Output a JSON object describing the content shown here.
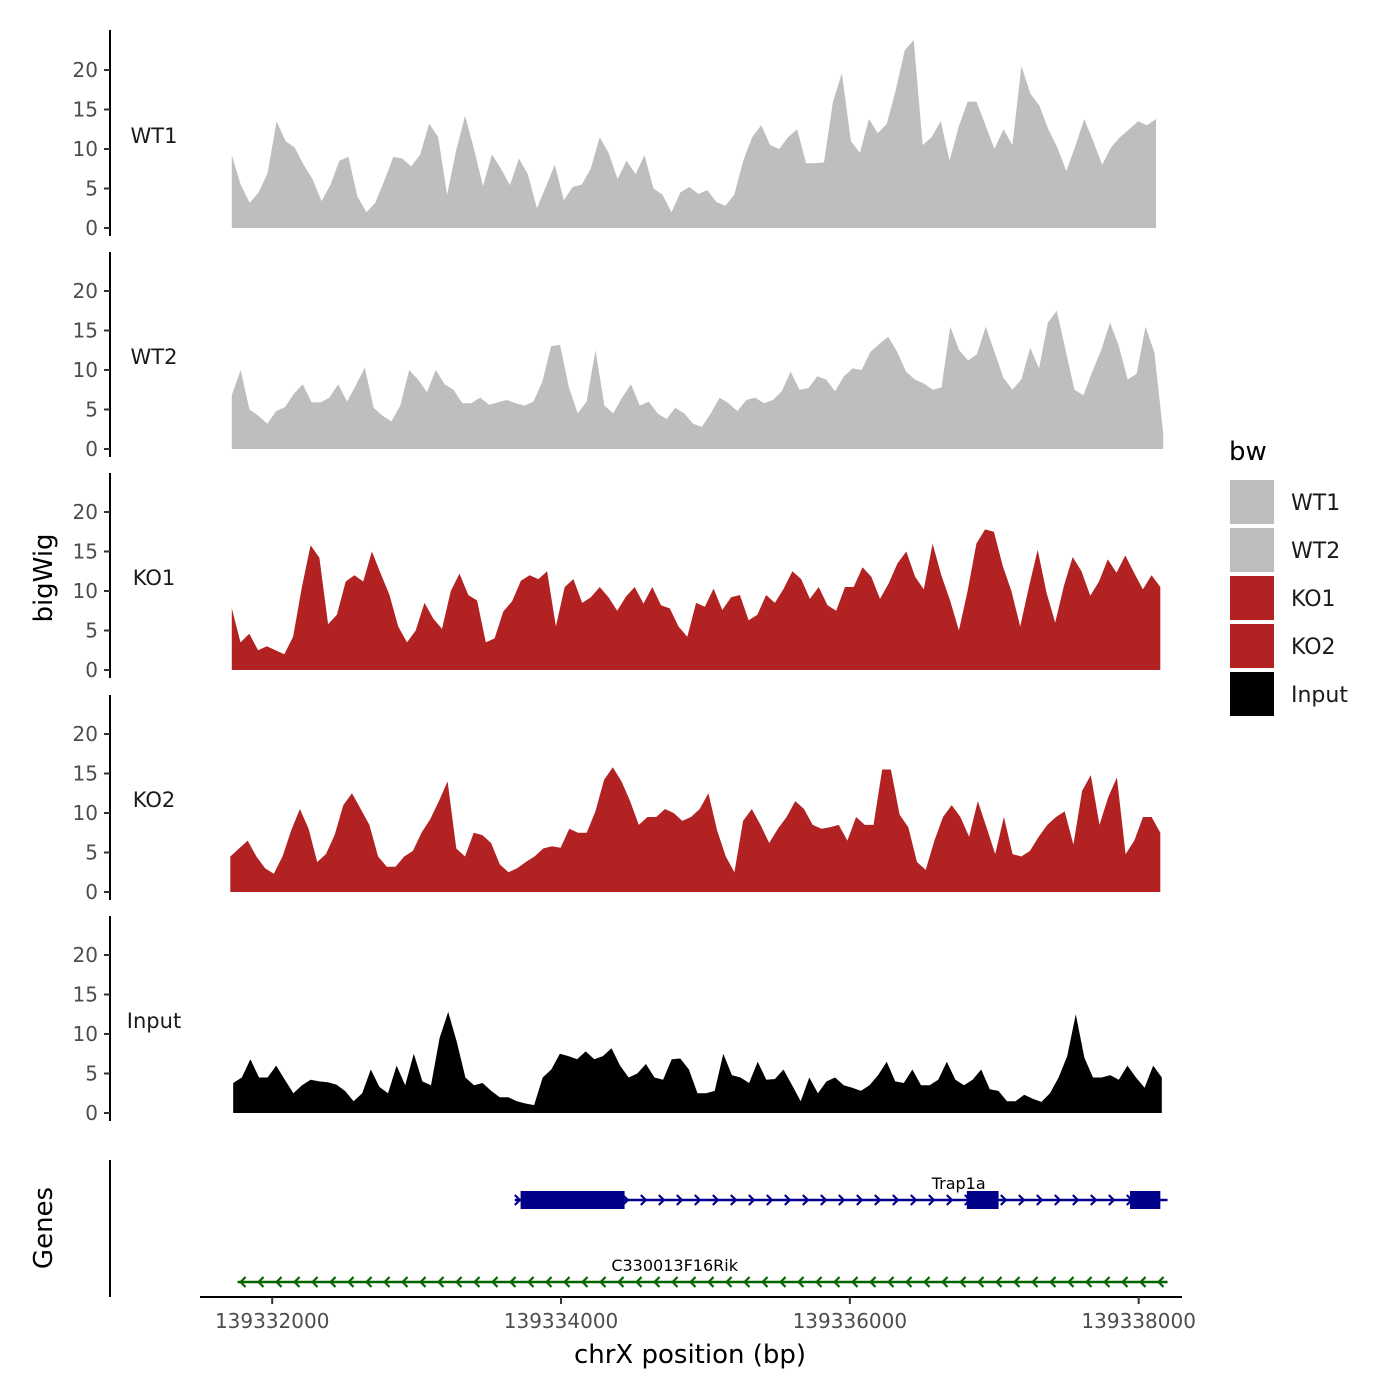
{
  "chart_data": {
    "type": "area",
    "title": "",
    "xlabel": "chrX position (bp)",
    "ylabel": "bigWig",
    "genes_axis_label": "Genes",
    "xlim": [
      139331500,
      139338300
    ],
    "ylim": [
      0,
      25
    ],
    "x_ticks": [
      139332000,
      139334000,
      139336000,
      139338000
    ],
    "x_tick_labels": [
      "139332000",
      "139334000",
      "139336000",
      "139338000"
    ],
    "y_ticks": [
      0,
      5,
      10,
      15,
      20
    ],
    "y_tick_labels": [
      "0",
      "5",
      "10",
      "15",
      "20"
    ],
    "legend": {
      "title": "bw",
      "position": "right",
      "entries": [
        {
          "label": "WT1",
          "color": "#bebebe"
        },
        {
          "label": "WT2",
          "color": "#bebebe"
        },
        {
          "label": "KO1",
          "color": "#b22222"
        },
        {
          "label": "KO2",
          "color": "#b22222"
        },
        {
          "label": "Input",
          "color": "#000000"
        }
      ]
    },
    "tracks": [
      {
        "name": "WT1",
        "color": "#bebebe",
        "x_start": 139331720,
        "x_end": 139338120,
        "values": [
          9.2,
          5.5,
          3.2,
          4.5,
          7,
          13.5,
          11,
          10.2,
          8,
          6.2,
          3.4,
          5.5,
          8.5,
          9,
          4,
          2,
          3.2,
          6,
          9,
          8.8,
          7.8,
          9.3,
          13.2,
          11.5,
          4.2,
          9.8,
          14.2,
          10,
          5.3,
          9.3,
          7.5,
          5.4,
          8.8,
          6.8,
          2.5,
          5.2,
          8,
          3.5,
          5.2,
          5.5,
          7.5,
          11.5,
          9.5,
          6.2,
          8.5,
          6.8,
          9.2,
          5,
          4.2,
          2,
          4.5,
          5.2,
          4.3,
          4.8,
          3.3,
          2.8,
          4.2,
          8.5,
          11.5,
          13,
          10.5,
          10,
          11.5,
          12.5,
          8.2,
          8.2,
          8.3,
          16,
          19.6,
          11,
          9.5,
          13.8,
          12,
          13.2,
          17.5,
          22.5,
          23.8,
          10.5,
          11.5,
          13.5,
          8.5,
          12.8,
          16,
          16,
          13,
          10,
          12.5,
          10.5,
          20.5,
          17,
          15.5,
          12.5,
          10.2,
          7.2,
          10.3,
          13.8,
          11,
          8,
          10.2,
          11.5,
          12.5,
          13.5,
          13,
          13.8
        ]
      },
      {
        "name": "WT2",
        "color": "#bebebe",
        "x_start": 139331720,
        "x_end": 139338170,
        "values": [
          6.8,
          10,
          5,
          4.2,
          3.2,
          4.8,
          5.3,
          7,
          8.2,
          5.9,
          5.9,
          6.5,
          8.2,
          6,
          8.1,
          10.3,
          5.2,
          4.2,
          3.5,
          5.5,
          10,
          8.8,
          7.2,
          10,
          8.2,
          7.5,
          5.8,
          5.8,
          6.5,
          5.6,
          5.9,
          6.2,
          5.8,
          5.5,
          6,
          8.5,
          13,
          13.2,
          7.8,
          4.5,
          6,
          12.5,
          5.5,
          4.5,
          6.5,
          8.2,
          5.5,
          6,
          4.5,
          3.8,
          5.2,
          4.5,
          3.2,
          2.8,
          4.5,
          6.5,
          5.8,
          4.8,
          6.2,
          6.5,
          5.8,
          6.2,
          7.3,
          9.8,
          7.5,
          7.7,
          9.2,
          8.8,
          7.3,
          9.2,
          10.2,
          10,
          12.3,
          13.3,
          14.2,
          12.3,
          9.8,
          8.8,
          8.3,
          7.5,
          7.8,
          15.5,
          12.5,
          11.2,
          12,
          15.5,
          12.2,
          9,
          7.5,
          8.8,
          12.8,
          10.2,
          16,
          17.5,
          12.5,
          7.5,
          6.8,
          9.8,
          12.5,
          16,
          13,
          8.8,
          9.5,
          15.5,
          12.2,
          2
        ]
      },
      {
        "name": "KO1",
        "color": "#b22222",
        "x_start": 139331720,
        "x_end": 139338150,
        "values": [
          7.8,
          3.5,
          4.6,
          2.5,
          3,
          2.5,
          2,
          4.2,
          10.5,
          15.8,
          14.2,
          5.8,
          7,
          11.2,
          12,
          11.2,
          15,
          12.2,
          9.5,
          5.5,
          3.5,
          5,
          8.5,
          6.5,
          5.2,
          10,
          12.2,
          9.5,
          8.8,
          3.5,
          4,
          7.4,
          8.7,
          11.3,
          12,
          11.5,
          12.5,
          5.5,
          10.5,
          11.5,
          8.5,
          9.2,
          10.5,
          9.2,
          7.5,
          9.3,
          10.5,
          8.4,
          10.5,
          8.2,
          7.8,
          5.5,
          4.2,
          8.5,
          8,
          10.3,
          7.6,
          9.2,
          9.5,
          6.3,
          7,
          9.5,
          8.5,
          10.3,
          12.5,
          11.5,
          9,
          10.5,
          8.2,
          7.5,
          10.5,
          10.5,
          13,
          11.8,
          9,
          11,
          13.5,
          15,
          11.8,
          10.2,
          16,
          12,
          8.8,
          5,
          10,
          16,
          17.8,
          17.5,
          13.2,
          10,
          5.5,
          10.5,
          15.2,
          9.8,
          6,
          10.7,
          14.3,
          12.5,
          9.4,
          11.2,
          14,
          12.3,
          14.5,
          12.3,
          10.2,
          12,
          10.5
        ]
      },
      {
        "name": "KO2",
        "color": "#b22222",
        "x_start": 139331710,
        "x_end": 139338150,
        "values": [
          4.5,
          5.5,
          6.5,
          4.5,
          3,
          2.3,
          4.5,
          7.8,
          10.5,
          8,
          3.8,
          4.8,
          7.2,
          11,
          12.5,
          10.5,
          8.5,
          4.5,
          3.2,
          3.2,
          4.5,
          5.2,
          7.5,
          9.2,
          11.5,
          14,
          5.5,
          4.5,
          7.5,
          7.2,
          6.2,
          3.5,
          2.5,
          3,
          3.8,
          4.5,
          5.5,
          5.8,
          5.6,
          8,
          7.5,
          7.5,
          10.2,
          14.2,
          15.8,
          14,
          11.5,
          8.5,
          9.5,
          9.5,
          10.5,
          10,
          9,
          9.5,
          10.5,
          12.5,
          7.8,
          4.5,
          2.5,
          9,
          10.5,
          8.5,
          6.2,
          8,
          9.5,
          11.5,
          10.5,
          8.5,
          8,
          8.2,
          8.5,
          6.5,
          9.5,
          8.5,
          8.5,
          15.5,
          15.5,
          9.8,
          8.2,
          3.8,
          2.8,
          6.5,
          9.5,
          11,
          9.5,
          7,
          11.5,
          8.2,
          4.8,
          9.5,
          4.8,
          4.5,
          5.2,
          7,
          8.5,
          9.5,
          10.2,
          6,
          12.8,
          14.8,
          8.5,
          12,
          14.5,
          4.8,
          6.5,
          9.5,
          9.5,
          7.5
        ]
      },
      {
        "name": "Input",
        "color": "#000000",
        "x_start": 139331730,
        "x_end": 139338160,
        "values": [
          3.8,
          4.5,
          6.8,
          4.5,
          4.5,
          6,
          4.2,
          2.5,
          3.5,
          4.2,
          4,
          3.9,
          3.6,
          2.8,
          1.5,
          2.5,
          5.5,
          3.3,
          2.5,
          6,
          3.5,
          7.5,
          4,
          3.5,
          9.5,
          12.8,
          9,
          4.5,
          3.5,
          3.8,
          2.8,
          2,
          2,
          1.5,
          1.2,
          1,
          4.5,
          5.5,
          7.5,
          7.2,
          6.8,
          7.8,
          6.8,
          7.2,
          8.2,
          6,
          4.5,
          5,
          6.2,
          4.5,
          4.2,
          6.8,
          6.9,
          5.5,
          2.5,
          2.5,
          2.8,
          7.5,
          4.8,
          4.5,
          3.8,
          6.5,
          4.2,
          4.3,
          5.5,
          3.5,
          1.5,
          4.5,
          2.5,
          4,
          4.5,
          3.5,
          3.2,
          2.8,
          3.5,
          4.8,
          6.5,
          4,
          3.8,
          5.5,
          3.5,
          3.5,
          4.2,
          6.5,
          4.2,
          3.5,
          4.2,
          5.5,
          3,
          2.8,
          1.5,
          1.5,
          2.3,
          1.8,
          1.4,
          2.5,
          4.5,
          7.2,
          12.5,
          7,
          4.5,
          4.5,
          4.8,
          4.2,
          6,
          4.5,
          3.2,
          6,
          4.5
        ]
      }
    ],
    "genes": [
      {
        "name": "Trap1a",
        "color": "#00008b",
        "strand": "+",
        "start": 139333680,
        "end": 139338200,
        "exons": [
          [
            139333720,
            139334440
          ],
          [
            139336810,
            139337030
          ],
          [
            139337940,
            139338150
          ]
        ]
      },
      {
        "name": "C330013F16Rik",
        "color": "#006400",
        "strand": "-",
        "start": 139331760,
        "end": 139338200,
        "exons": []
      }
    ]
  }
}
